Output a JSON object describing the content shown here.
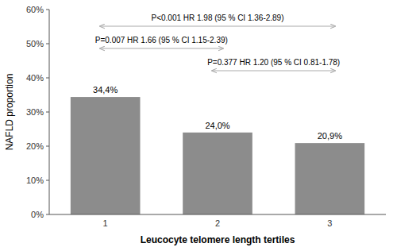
{
  "chart_data": {
    "type": "bar",
    "categories": [
      "1",
      "2",
      "3"
    ],
    "values": [
      0.344,
      0.24,
      0.209
    ],
    "value_labels": [
      "34,4%",
      "24,0%",
      "20,9%"
    ],
    "data_labels": true,
    "color": "#8c8c8c",
    "xlabel": "Leucocyte telomere length tertiles",
    "ylabel": "NAFLD proportion",
    "ylim": [
      0,
      0.6
    ],
    "yticks": [
      {
        "value": 0.0,
        "label": "0%"
      },
      {
        "value": 0.1,
        "label": "10%"
      },
      {
        "value": 0.2,
        "label": "20%"
      },
      {
        "value": 0.3,
        "label": "30%"
      },
      {
        "value": 0.4,
        "label": "40%"
      },
      {
        "value": 0.5,
        "label": "50%"
      },
      {
        "value": 0.6,
        "label": "60%"
      }
    ],
    "grid": false,
    "annotations": [
      "P<0.001 HR 1.98 (95 % CI 1.36-2.89)",
      "P=0.007 HR 1.66 (95 % CI 1.15-2.39)",
      "P=0.377 HR 1.20 (95 % CI 0.81-1.78)"
    ]
  }
}
